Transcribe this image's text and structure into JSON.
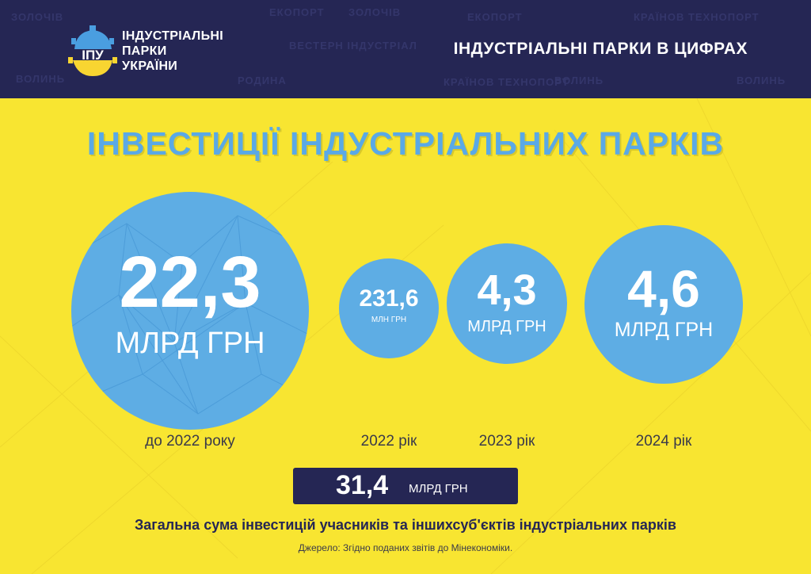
{
  "header": {
    "logo_letters": "ІПУ",
    "logo_lines": [
      "ІНДУСТРІАЛЬНІ",
      "ПАРКИ",
      "УКРАЇНИ"
    ],
    "title": "ІНДУСТРІАЛЬНІ ПАРКИ В ЦИФРАХ",
    "pattern_words": [
      "ЕКОПОРТ",
      "ВОЛИНЬ",
      "ВЕСТЕРН ІНДУСТРІАЛ",
      "РОДИНА",
      "КРАЇНОВ ТЕХНОПОРТ",
      "ЗОЛОЧІВ"
    ]
  },
  "main": {
    "title": "ІНВЕСТИЦІЇ ІНДУСТРІАЛЬНИХ ПАРКІВ",
    "items": [
      {
        "value": "22,3",
        "unit": "МЛРД ГРН",
        "period": "до 2022 року"
      },
      {
        "value": "231,6",
        "unit": "МЛН ГРН",
        "period": "2022 рік"
      },
      {
        "value": "4,3",
        "unit": "МЛРД ГРН",
        "period": "2023 рік"
      },
      {
        "value": "4,6",
        "unit": "МЛРД ГРН",
        "period": "2024 рік"
      }
    ],
    "total": {
      "value": "31,4",
      "unit": "МЛРД ГРН"
    },
    "summary": "Загальна сума інвестицій учасників та іншихсуб'єктів індустріальних парків",
    "source": "Джерело: Згідно поданих звітів до Мінекономіки."
  },
  "colors": {
    "background": "#f8e531",
    "navy": "#252654",
    "circle_blue": "#5eade4",
    "title_blue": "#5aa9e6"
  }
}
